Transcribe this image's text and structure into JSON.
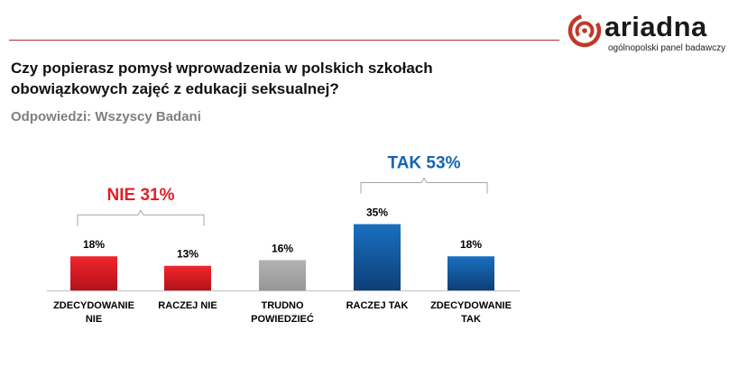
{
  "header": {
    "question_line1": "Czy popierasz pomysł wprowadzenia w polskich szkołach",
    "question_line2": "obowiązkowych zajęć z edukacji seksualnej?",
    "subtitle": "Odpowiedzi: Wszyscy Badani"
  },
  "logo": {
    "name": "ariadna",
    "tagline": "ogólnopolski panel badawczy",
    "icon": "ariadna-spiral-logo"
  },
  "colors": {
    "red": "#e31e24",
    "gray": "#a6a6a6",
    "blue": "#1565b0",
    "rule": "#b0303a"
  },
  "chart_data": {
    "type": "bar",
    "categories": [
      [
        "ZDECYDOWANIE",
        "NIE"
      ],
      [
        "RACZEJ NIE"
      ],
      [
        "TRUDNO",
        "POWIEDZIEĆ"
      ],
      [
        "RACZEJ TAK"
      ],
      [
        "ZDECYDOWANIE",
        "TAK"
      ]
    ],
    "values": [
      18,
      13,
      16,
      35,
      18
    ],
    "value_labels": [
      "18%",
      "13%",
      "16%",
      "35%",
      "18%"
    ],
    "bar_colors": [
      "red",
      "red",
      "gray",
      "blue",
      "blue"
    ],
    "groups": [
      {
        "label": "NIE 31%",
        "color": "red",
        "from": 0,
        "to": 1
      },
      {
        "label": "TAK 53%",
        "color": "blue",
        "from": 3,
        "to": 4
      }
    ],
    "ylim": [
      0,
      40
    ],
    "grid": false,
    "legend": "none"
  }
}
